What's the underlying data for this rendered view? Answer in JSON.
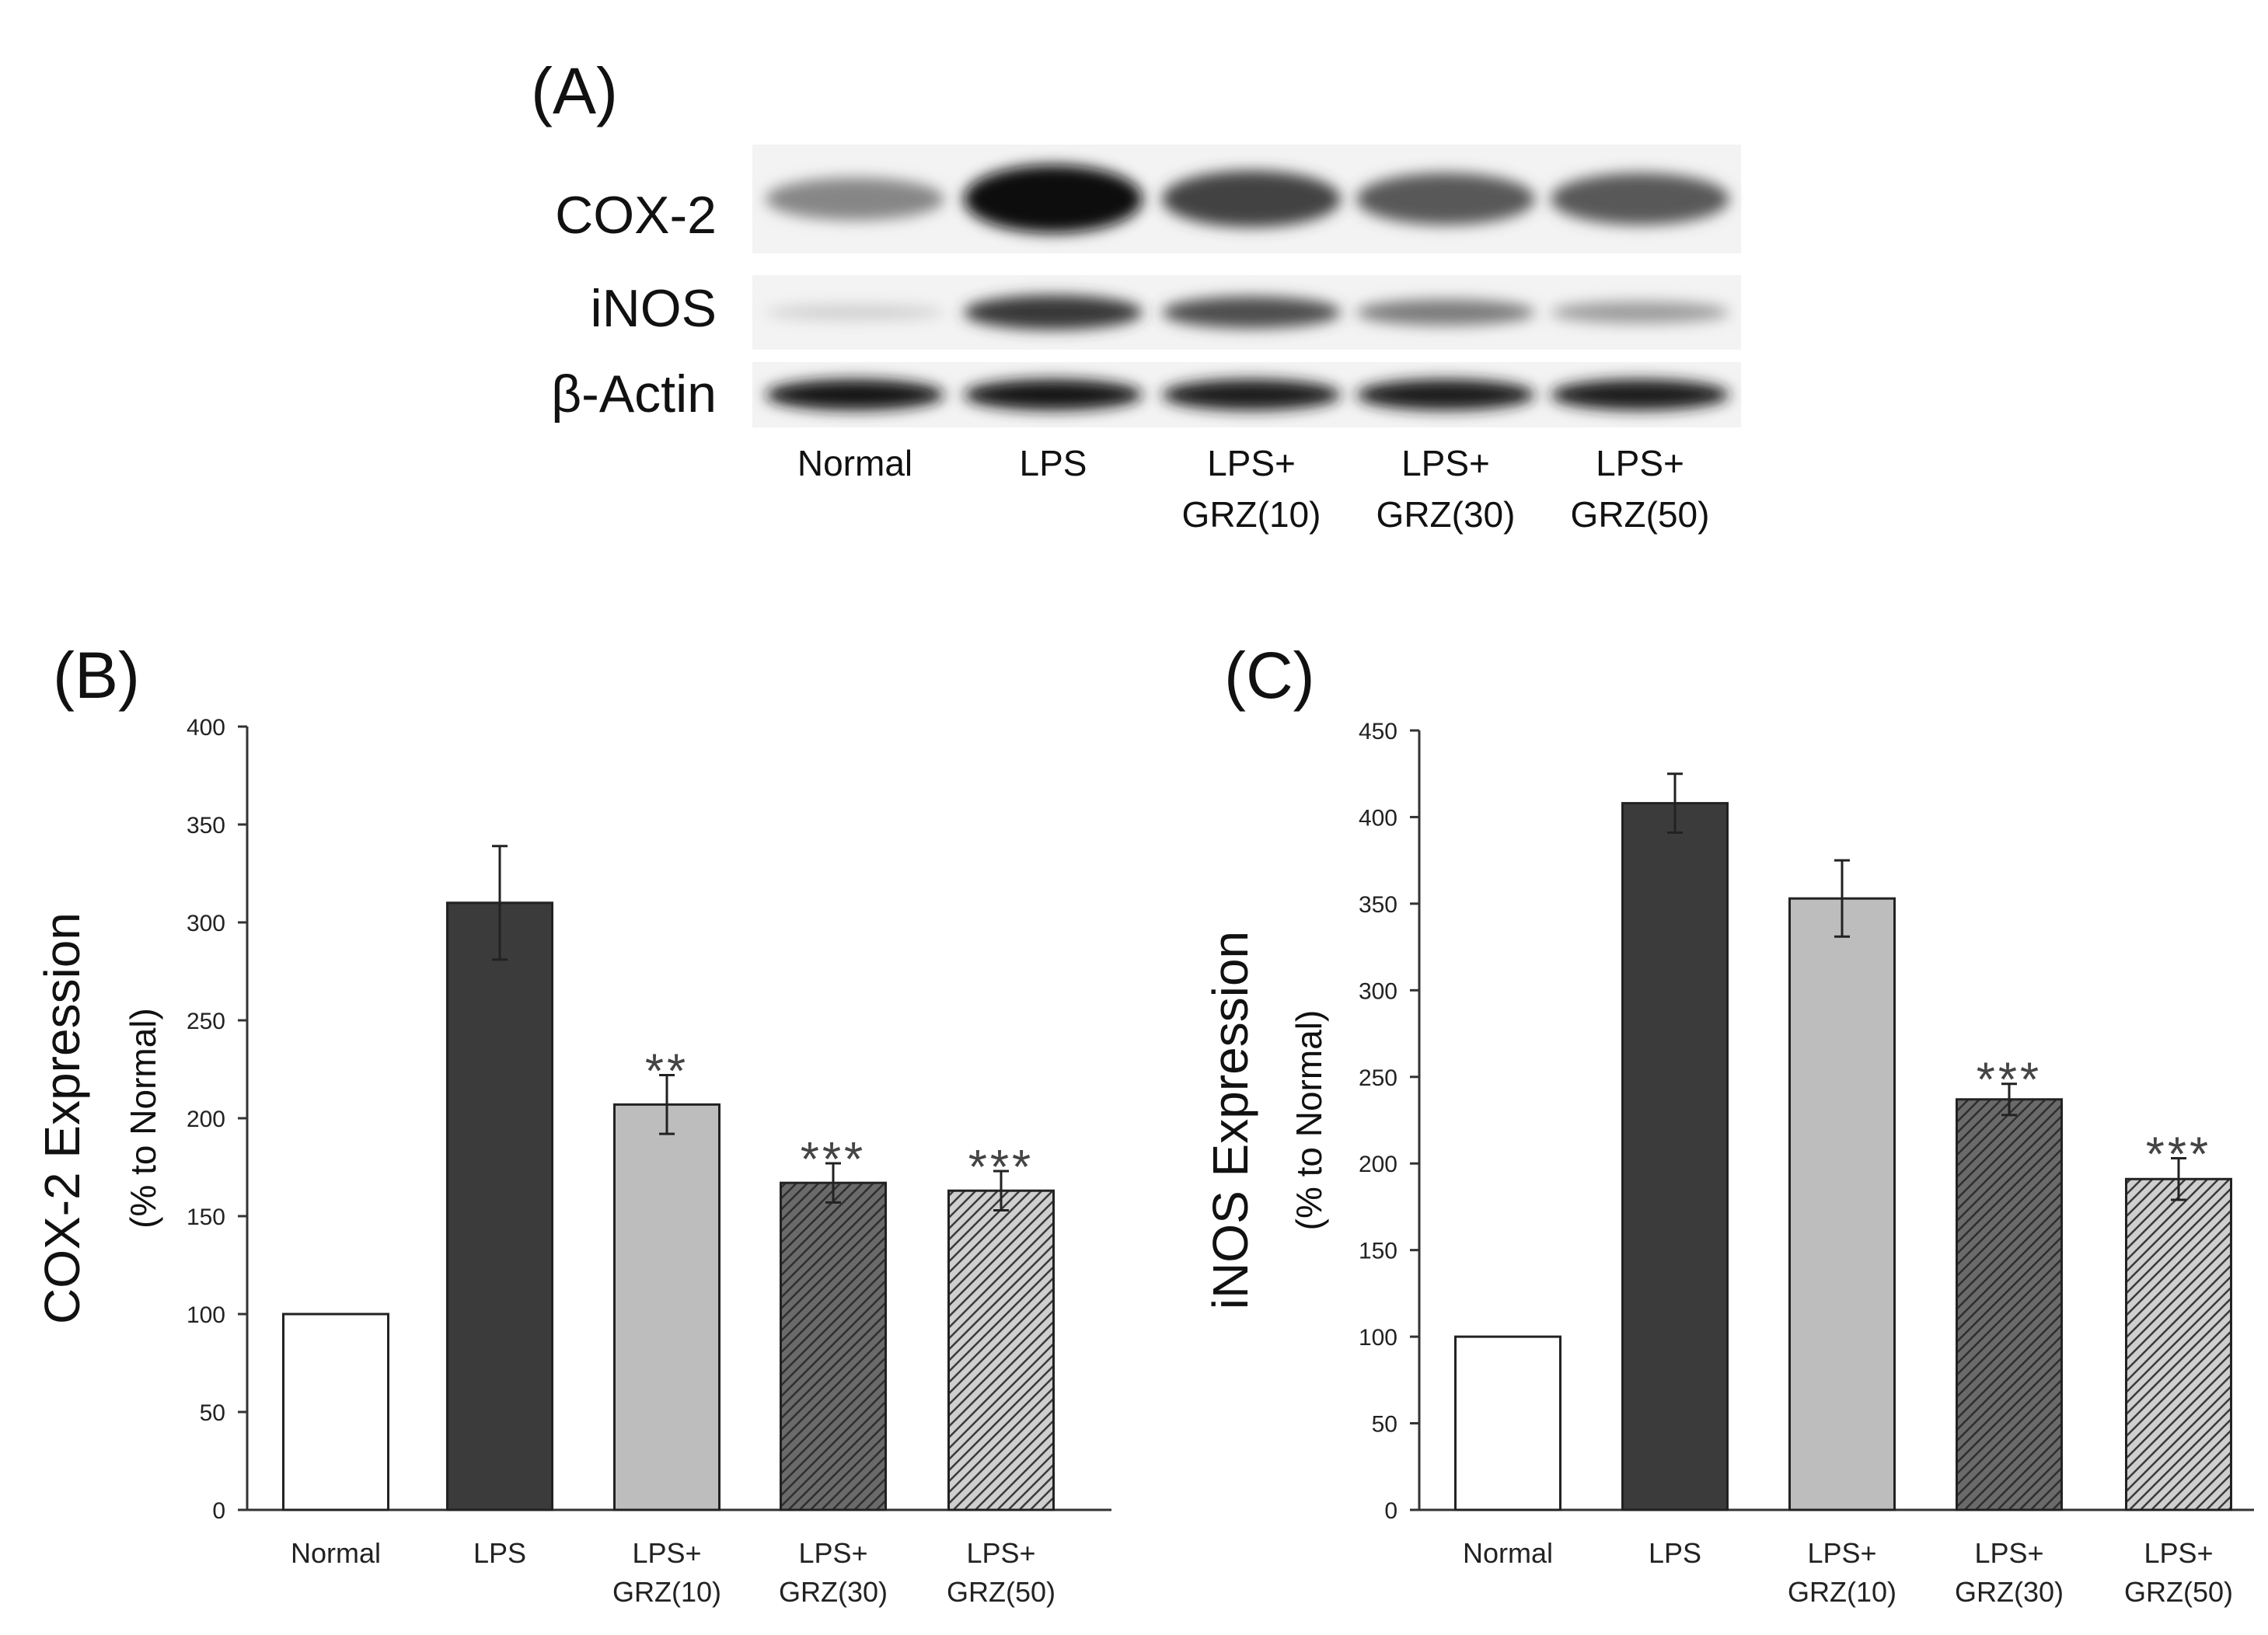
{
  "panel_a": {
    "label": "(A)",
    "blots": [
      {
        "name": "COX-2",
        "intensity": [
          0.45,
          1.0,
          0.75,
          0.65,
          0.65
        ]
      },
      {
        "name": "iNOS",
        "intensity": [
          0.12,
          0.8,
          0.7,
          0.5,
          0.35
        ]
      },
      {
        "name": "β-Actin",
        "intensity": [
          0.95,
          0.95,
          0.92,
          0.92,
          0.92
        ]
      }
    ],
    "lanes": [
      [
        "Normal"
      ],
      [
        "LPS"
      ],
      [
        "LPS+",
        "GRZ(10)"
      ],
      [
        "LPS+",
        "GRZ(30)"
      ],
      [
        "LPS+",
        "GRZ(50)"
      ]
    ]
  },
  "chart_data": [
    {
      "panel": "(B)",
      "type": "bar",
      "ylabel": "COX-2 Expression",
      "ylabel2": "(% to Normal)",
      "ylim": [
        0,
        400
      ],
      "yticks": [
        0,
        50,
        100,
        150,
        200,
        250,
        300,
        350,
        400
      ],
      "categories": [
        [
          "Normal"
        ],
        [
          "LPS"
        ],
        [
          "LPS+",
          "GRZ(10)"
        ],
        [
          "LPS+",
          "GRZ(30)"
        ],
        [
          "LPS+",
          "GRZ(50)"
        ]
      ],
      "values": [
        100,
        310,
        207,
        167,
        163
      ],
      "errors": [
        0,
        29,
        15,
        10,
        10
      ],
      "annotations": [
        "",
        "",
        "**",
        "***",
        "***"
      ],
      "fills": [
        "white",
        "#3b3b3b",
        "#bdbdbd",
        "hatch-dark",
        "hatch-light"
      ]
    },
    {
      "panel": "(C)",
      "type": "bar",
      "ylabel": "iNOS Expression",
      "ylabel2": "(% to Normal)",
      "ylim": [
        0,
        450
      ],
      "yticks": [
        0,
        50,
        100,
        150,
        200,
        250,
        300,
        350,
        400,
        450
      ],
      "categories": [
        [
          "Normal"
        ],
        [
          "LPS"
        ],
        [
          "LPS+",
          "GRZ(10)"
        ],
        [
          "LPS+",
          "GRZ(30)"
        ],
        [
          "LPS+",
          "GRZ(50)"
        ]
      ],
      "values": [
        100,
        408,
        353,
        237,
        191
      ],
      "errors": [
        0,
        17,
        22,
        9,
        12
      ],
      "annotations": [
        "",
        "",
        "",
        "***",
        "***"
      ],
      "fills": [
        "white",
        "#3b3b3b",
        "#bdbdbd",
        "hatch-dark",
        "hatch-light"
      ]
    }
  ]
}
